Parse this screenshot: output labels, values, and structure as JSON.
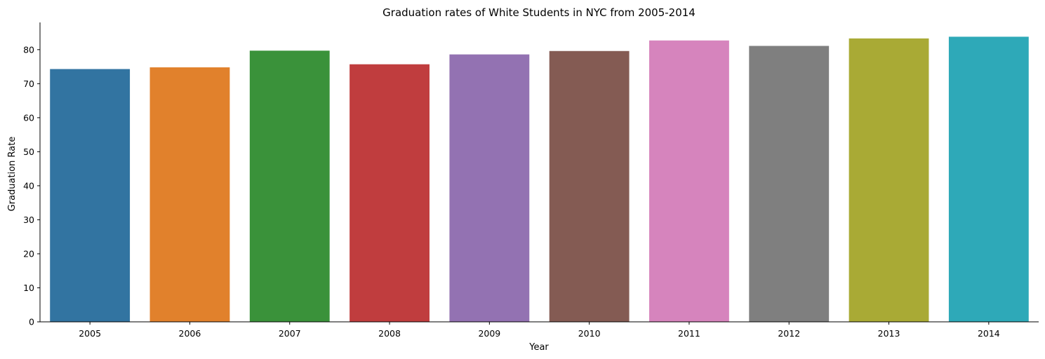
{
  "chart_data": {
    "type": "bar",
    "title": "Graduation rates of White Students in NYC from 2005-2014",
    "xlabel": "Year",
    "ylabel": "Graduation Rate",
    "categories": [
      "2005",
      "2006",
      "2007",
      "2008",
      "2009",
      "2010",
      "2011",
      "2012",
      "2013",
      "2014"
    ],
    "values": [
      74.3,
      74.8,
      79.7,
      75.7,
      78.6,
      79.6,
      82.7,
      81.1,
      83.3,
      83.8
    ],
    "colors": [
      "#3274a1",
      "#e1812c",
      "#3a923a",
      "#c03d3e",
      "#9372b2",
      "#845b53",
      "#d684bd",
      "#7f7f7f",
      "#a9aa35",
      "#2ea9b8"
    ],
    "yticks": [
      0,
      10,
      20,
      30,
      40,
      50,
      60,
      70,
      80
    ],
    "ylim": [
      0,
      88
    ],
    "grid": false,
    "legend": "none"
  }
}
